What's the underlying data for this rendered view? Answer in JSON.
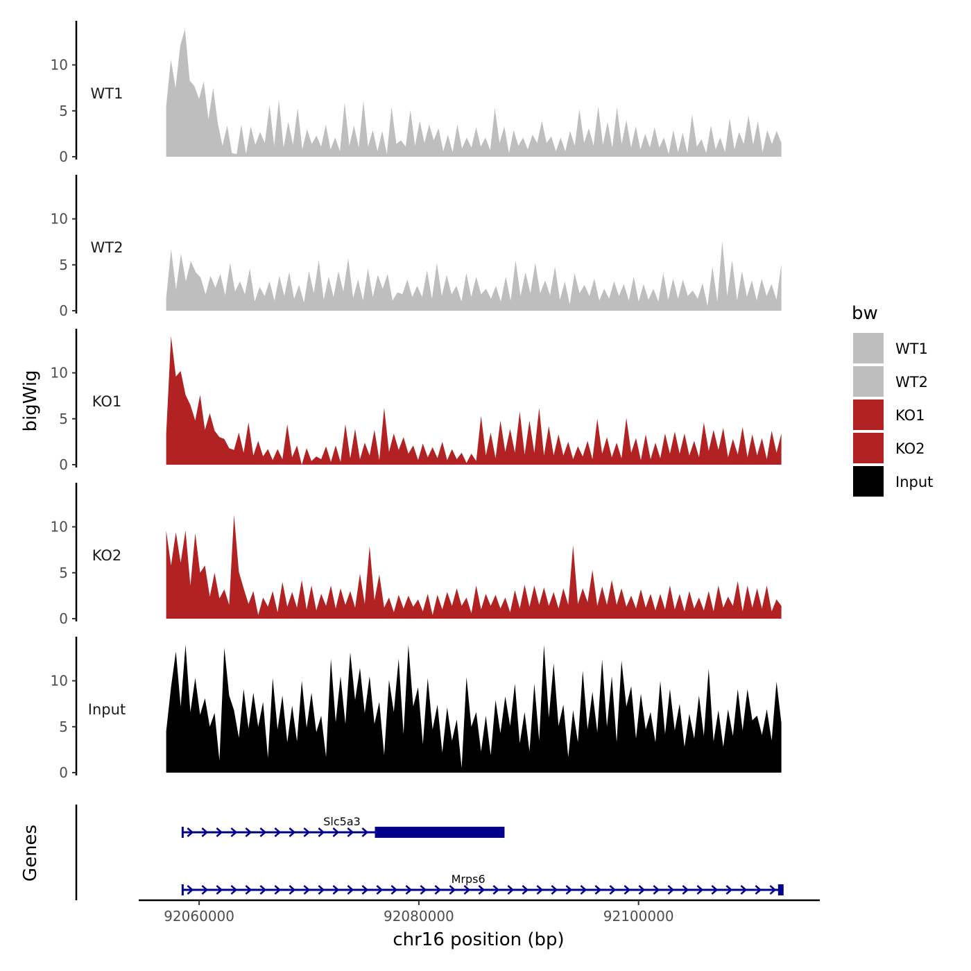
{
  "chart_data": {
    "type": "area",
    "region": {
      "chrom": "chr16",
      "start": 92057000,
      "end": 92113000
    },
    "xlabel": "chr16 position (bp)",
    "x_ticks": [
      {
        "value": 92060000,
        "label": "92060000"
      },
      {
        "value": 92080000,
        "label": "92080000"
      },
      {
        "value": 92100000,
        "label": "92100000"
      }
    ],
    "xlim": [
      92054500,
      92116500
    ],
    "ylabel": "bigWig",
    "genes_label": "Genes",
    "ylim": [
      0,
      14.5
    ],
    "y_ticks": [
      {
        "value": 0,
        "label": "0"
      },
      {
        "value": 5,
        "label": "5"
      },
      {
        "value": 10,
        "label": "10"
      }
    ],
    "series": [
      {
        "name": "WT1",
        "color": "#bebebe",
        "values": [
          5.5,
          10.6,
          7.5,
          12.1,
          13.9,
          8.3,
          7.7,
          6.3,
          8.2,
          4.1,
          7.5,
          3.6,
          1.2,
          3.4,
          0.4,
          0.3,
          3.5,
          0.3,
          3.3,
          1.3,
          2.7,
          1.5,
          5.6,
          1.2,
          6.2,
          1.0,
          3.8,
          1.3,
          5.3,
          0.8,
          3.0,
          1.4,
          2.3,
          1.1,
          3.5,
          0.8,
          2.1,
          0.6,
          5.9,
          1.2,
          3.4,
          1.0,
          6.1,
          1.1,
          2.9,
          0.6,
          2.8,
          0.3,
          5.4,
          1.4,
          1.8,
          1.1,
          5.1,
          1.2,
          3.9,
          1.5,
          3.5,
          1.8,
          3.1,
          0.6,
          2.4,
          0.5,
          3.5,
          0.9,
          2.1,
          1.0,
          3.2,
          1.1,
          2.1,
          0.7,
          5.3,
          1.5,
          3.3,
          0.4,
          2.9,
          1.2,
          2.1,
          0.8,
          2.4,
          1.5,
          3.9,
          1.5,
          2.2,
          0.6,
          2.1,
          0.6,
          2.8,
          1.2,
          5.2,
          1.5,
          3.1,
          1.2,
          5.5,
          1.3,
          3.8,
          1.0,
          5.4,
          1.4,
          4.0,
          1.0,
          3.3,
          0.8,
          2.5,
          1.0,
          3.2,
          1.0,
          2.1,
          0.3,
          2.9,
          0.5,
          2.6,
          0.4,
          4.6,
          1.1,
          1.9,
          0.4,
          3.4,
          0.8,
          2.1,
          0.5,
          4.2,
          0.8,
          2.7,
          1.4,
          4.5,
          1.3,
          3.9,
          0.5,
          2.9,
          1.4,
          2.8,
          1.5
        ]
      },
      {
        "name": "WT2",
        "color": "#bebebe",
        "values": [
          1.4,
          6.7,
          2.3,
          6.2,
          3.2,
          5.4,
          4.2,
          3.6,
          1.8,
          3.8,
          2.5,
          4.0,
          1.7,
          5.2,
          2.1,
          3.2,
          1.8,
          4.6,
          1.0,
          2.6,
          1.6,
          3.2,
          1.1,
          3.8,
          1.6,
          4.2,
          1.3,
          2.8,
          0.9,
          4.3,
          1.9,
          5.5,
          1.2,
          3.7,
          1.5,
          4.3,
          2.1,
          5.7,
          1.4,
          3.4,
          1.1,
          4.6,
          1.5,
          3.9,
          2.4,
          4.0,
          1.1,
          2.0,
          1.8,
          3.4,
          1.5,
          2.7,
          1.5,
          4.4,
          1.3,
          5.2,
          1.6,
          3.9,
          1.8,
          2.7,
          1.0,
          4.1,
          1.5,
          3.7,
          1.8,
          2.4,
          1.3,
          2.7,
          1.0,
          3.7,
          1.1,
          5.5,
          1.6,
          4.2,
          1.9,
          5.2,
          1.9,
          3.3,
          1.7,
          4.8,
          1.2,
          3.2,
          0.7,
          4.1,
          1.9,
          2.8,
          1.6,
          3.5,
          1.1,
          2.4,
          1.3,
          3.2,
          1.6,
          2.9,
          1.1,
          3.7,
          1.0,
          2.9,
          1.2,
          2.4,
          1.0,
          4.1,
          1.2,
          3.5,
          1.3,
          3.4,
          1.6,
          2.2,
          1.3,
          3.0,
          0.5,
          4.8,
          1.0,
          7.6,
          1.6,
          5.5,
          1.1,
          4.3,
          1.5,
          3.3,
          1.1,
          3.5,
          1.6,
          2.9,
          1.2,
          5.1
        ]
      },
      {
        "name": "KO1",
        "color": "#b22222",
        "values": [
          3.3,
          14.0,
          9.6,
          10.2,
          7.6,
          6.5,
          4.8,
          7.6,
          3.8,
          5.6,
          3.7,
          3.0,
          2.8,
          1.8,
          1.6,
          3.5,
          1.3,
          4.6,
          1.0,
          2.6,
          0.9,
          1.7,
          0.5,
          1.7,
          0.6,
          4.4,
          0.8,
          2.1,
          0.0,
          1.8,
          0.4,
          0.9,
          0.6,
          2.0,
          0.3,
          2.1,
          0.3,
          4.4,
          0.7,
          3.9,
          0.6,
          2.4,
          1.0,
          3.8,
          0.5,
          6.2,
          1.4,
          3.4,
          1.6,
          3.0,
          1.2,
          2.1,
          0.5,
          2.3,
          0.8,
          1.9,
          0.7,
          2.5,
          0.5,
          1.7,
          0.6,
          1.3,
          0.2,
          1.2,
          0.4,
          5.3,
          1.0,
          3.5,
          0.7,
          4.8,
          1.4,
          3.9,
          1.3,
          5.8,
          1.1,
          4.8,
          1.3,
          6.2,
          1.0,
          4.2,
          1.0,
          3.3,
          1.0,
          2.5,
          0.6,
          2.0,
          0.9,
          2.6,
          0.6,
          5.0,
          1.2,
          3.0,
          0.8,
          2.4,
          0.7,
          5.1,
          1.3,
          2.9,
          0.5,
          3.3,
          0.6,
          2.4,
          0.7,
          3.4,
          1.2,
          3.6,
          1.2,
          3.4,
          1.0,
          2.6,
          0.8,
          4.6,
          1.5,
          3.8,
          1.6,
          4.0,
          0.8,
          2.8,
          1.1,
          4.1,
          0.8,
          3.3,
          1.0,
          2.9,
          0.6,
          3.7,
          1.3,
          3.4
        ]
      },
      {
        "name": "KO2",
        "color": "#b22222",
        "values": [
          9.6,
          5.8,
          9.4,
          6.1,
          9.6,
          3.6,
          9.3,
          5.0,
          5.8,
          2.4,
          5.0,
          2.2,
          3.2,
          1.5,
          11.3,
          5.1,
          3.3,
          1.6,
          3.0,
          0.4,
          2.3,
          1.3,
          3.0,
          0.7,
          4.0,
          1.3,
          2.9,
          1.2,
          4.2,
          1.0,
          3.6,
          0.9,
          2.7,
          1.4,
          3.6,
          1.1,
          3.3,
          1.5,
          3.0,
          1.2,
          4.9,
          1.6,
          7.9,
          2.0,
          4.8,
          1.2,
          2.3,
          0.7,
          2.6,
          1.1,
          2.5,
          1.3,
          2.1,
          0.8,
          2.7,
          0.4,
          2.6,
          1.0,
          2.9,
          1.4,
          3.3,
          1.4,
          2.3,
          0.6,
          3.6,
          1.0,
          2.7,
          1.4,
          2.6,
          1.1,
          2.3,
          0.7,
          3.1,
          1.1,
          3.7,
          1.3,
          3.6,
          1.5,
          3.4,
          1.4,
          2.9,
          1.1,
          3.3,
          1.5,
          8.0,
          1.6,
          3.3,
          1.8,
          5.3,
          1.4,
          3.5,
          1.5,
          4.2,
          1.5,
          3.3,
          1.3,
          2.5,
          1.1,
          3.2,
          1.2,
          2.7,
          0.9,
          2.7,
          1.0,
          3.6,
          1.0,
          2.7,
          0.8,
          3.0,
          1.1,
          2.3,
          0.9,
          3.0,
          0.8,
          3.6,
          1.2,
          2.4,
          1.4,
          4.1,
          0.8,
          3.6,
          1.2,
          3.3,
          1.1,
          3.6,
          0.8,
          2.1,
          1.4
        ]
      },
      {
        "name": "Input",
        "color": "#000000",
        "values": [
          4.5,
          9.3,
          13.2,
          7.2,
          13.9,
          6.6,
          10.3,
          6.3,
          8.1,
          5.0,
          6.5,
          1.3,
          13.6,
          8.4,
          6.8,
          3.8,
          9.1,
          4.8,
          8.7,
          5.0,
          7.7,
          1.6,
          10.3,
          4.7,
          8.4,
          3.3,
          7.3,
          3.4,
          10.0,
          4.9,
          8.7,
          4.4,
          6.2,
          1.7,
          12.4,
          5.5,
          10.5,
          5.3,
          13.1,
          7.9,
          11.4,
          6.5,
          10.5,
          5.3,
          7.7,
          1.9,
          10.1,
          6.6,
          12.4,
          4.2,
          13.9,
          7.2,
          9.3,
          3.1,
          10.3,
          4.7,
          7.4,
          2.2,
          7.1,
          3.5,
          5.8,
          0.5,
          10.4,
          5.0,
          6.6,
          2.3,
          6.2,
          1.9,
          7.9,
          4.3,
          8.3,
          5.1,
          9.7,
          3.2,
          6.6,
          2.3,
          9.7,
          3.5,
          13.9,
          6.0,
          11.9,
          5.1,
          7.4,
          1.7,
          6.8,
          3.3,
          11.1,
          4.7,
          8.8,
          4.4,
          12.3,
          5.0,
          10.5,
          3.3,
          12.2,
          7.2,
          9.4,
          3.7,
          8.6,
          4.7,
          6.6,
          3.3,
          10.0,
          4.2,
          9.1,
          4.6,
          7.5,
          2.8,
          6.4,
          3.7,
          8.4,
          4.0,
          11.3,
          3.4,
          6.8,
          2.8,
          6.9,
          4.0,
          9.1,
          4.6,
          9.1,
          5.7,
          6.2,
          4.1,
          6.9,
          3.5,
          9.9,
          5.4
        ]
      }
    ],
    "genes": [
      {
        "name": "Slc5a3",
        "start": 92058500,
        "end": 92087800,
        "strand": "+",
        "thick_start": 92076000,
        "thick_end": 92087800,
        "row": 1
      },
      {
        "name": "Mrps6",
        "start": 92058500,
        "end": 92113200,
        "strand": "+",
        "thick_start": 92112700,
        "thick_end": 92113200,
        "row": 2
      }
    ],
    "legend": {
      "title": "bw",
      "entries": [
        {
          "label": "WT1",
          "color": "#bebebe"
        },
        {
          "label": "WT2",
          "color": "#bebebe"
        },
        {
          "label": "KO1",
          "color": "#b22222"
        },
        {
          "label": "KO2",
          "color": "#b22222"
        },
        {
          "label": "Input",
          "color": "#000000"
        }
      ],
      "placement": "right"
    },
    "gene_color": "#00008b"
  }
}
